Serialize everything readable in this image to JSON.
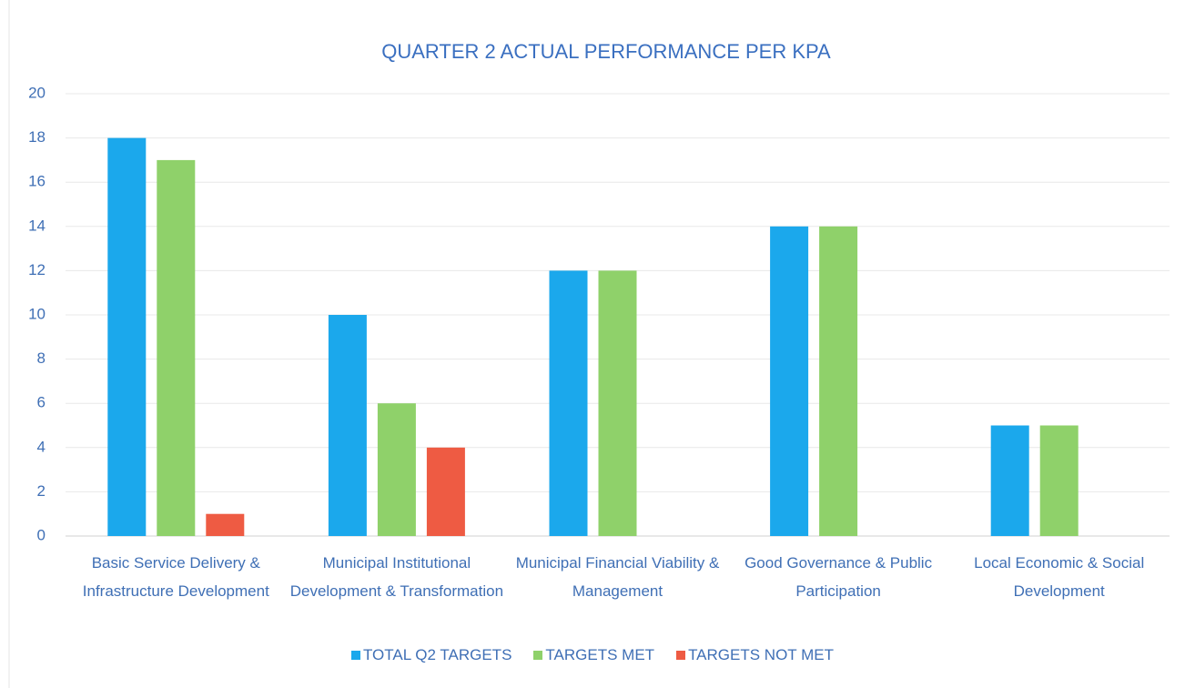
{
  "chart_data": {
    "type": "bar",
    "title": "QUARTER 2 ACTUAL PERFORMANCE PER KPA",
    "categories": [
      "Basic Service Delivery & Infrastructure Development",
      "Municipal Institutional Development & Transformation",
      "Municipal Financial Viability & Management",
      "Good Governance & Public Participation",
      "Local Economic & Social Development"
    ],
    "series": [
      {
        "name": "TOTAL Q2 TARGETS",
        "color": "#1ba8ec",
        "values": [
          18,
          10,
          12,
          14,
          5
        ]
      },
      {
        "name": "TARGETS MET",
        "color": "#8fd16a",
        "values": [
          17,
          6,
          12,
          14,
          5
        ]
      },
      {
        "name": "TARGETS NOT MET",
        "color": "#ee5b43",
        "values": [
          1,
          4,
          0,
          0,
          0
        ]
      }
    ],
    "ylim": [
      0,
      20
    ],
    "yticks": [
      0,
      2,
      4,
      6,
      8,
      10,
      12,
      14,
      16,
      18,
      20
    ],
    "grid": true,
    "legend": "bottom"
  }
}
